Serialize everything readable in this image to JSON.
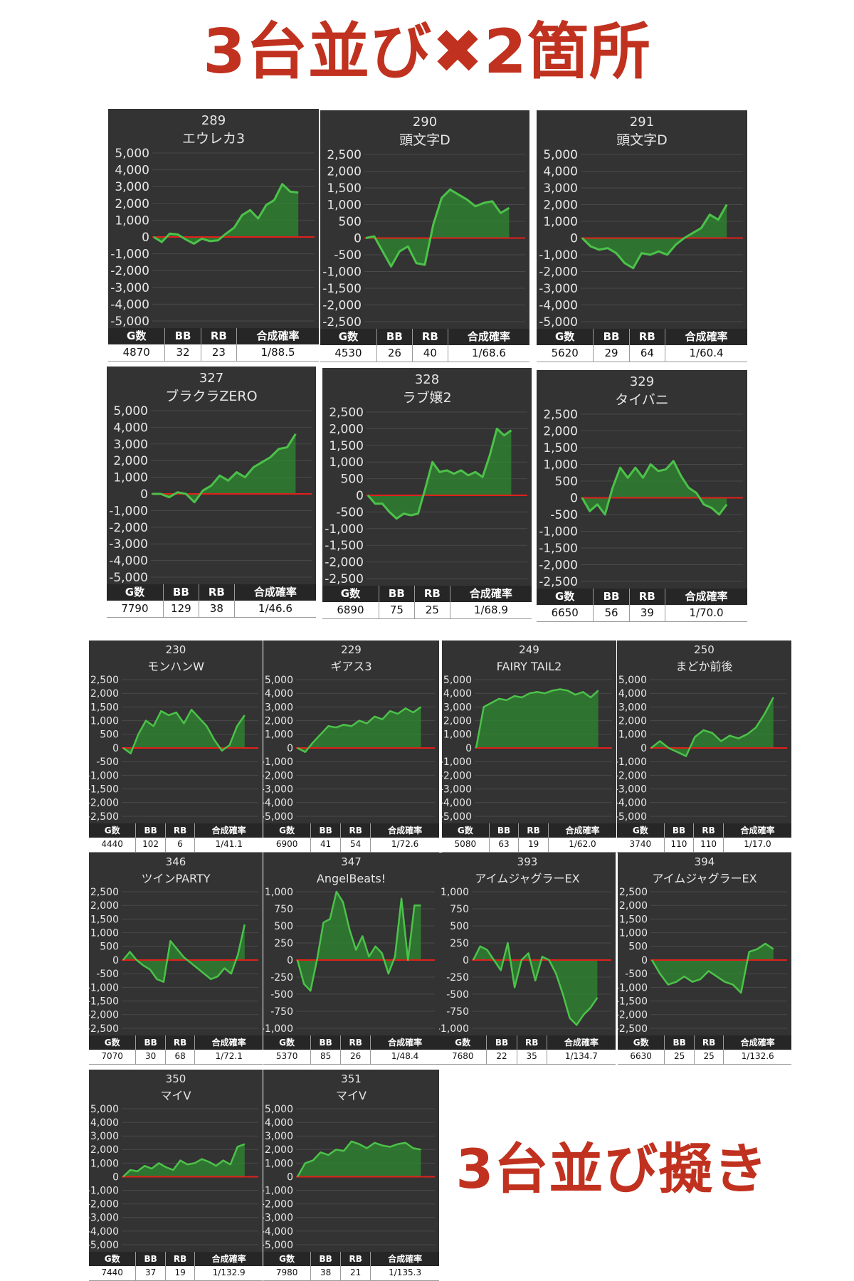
{
  "page": {
    "title": "3台並び✖2箇所",
    "subtitle": "3台並び擬き"
  },
  "chart_data": [
    {
      "type": "area",
      "machine_no": "289",
      "machine_name": "エウレカ3",
      "ylim": [
        -5000,
        5000
      ],
      "yticks": [
        "5,000",
        "4,000",
        "3,000",
        "2,000",
        "1,000",
        "0",
        "-1,000",
        "-2,000",
        "-3,000",
        "-4,000",
        "-5,000"
      ],
      "values": [
        0,
        -300,
        200,
        150,
        -150,
        -400,
        -100,
        -250,
        -200,
        200,
        550,
        1300,
        1600,
        1100,
        1900,
        2200,
        3150,
        2700,
        2650
      ],
      "stats": {
        "g": "4870",
        "bb": "32",
        "rb": "23",
        "rate": "1/88.5"
      }
    },
    {
      "type": "area",
      "machine_no": "290",
      "machine_name": "頭文字D",
      "ylim": [
        -2500,
        2500
      ],
      "yticks": [
        "2,500",
        "2,000",
        "1,500",
        "1,000",
        "500",
        "0",
        "-500",
        "-1,000",
        "-1,500",
        "-2,000",
        "-2,500"
      ],
      "values": [
        0,
        50,
        -400,
        -850,
        -400,
        -250,
        -750,
        -800,
        400,
        1200,
        1450,
        1300,
        1150,
        950,
        1050,
        1100,
        750,
        900
      ],
      "stats": {
        "g": "4530",
        "bb": "26",
        "rb": "40",
        "rate": "1/68.6"
      }
    },
    {
      "type": "area",
      "machine_no": "291",
      "machine_name": "頭文字D",
      "ylim": [
        -5000,
        5000
      ],
      "yticks": [
        "5,000",
        "4,000",
        "3,000",
        "2,000",
        "1,000",
        "0",
        "-1,000",
        "-2,000",
        "-3,000",
        "-4,000",
        "-5,000"
      ],
      "values": [
        0,
        -500,
        -700,
        -600,
        -900,
        -1500,
        -1800,
        -900,
        -1000,
        -800,
        -1000,
        -400,
        0,
        300,
        600,
        1400,
        1100,
        2000
      ],
      "stats": {
        "g": "5620",
        "bb": "29",
        "rb": "64",
        "rate": "1/60.4"
      }
    },
    {
      "type": "area",
      "machine_no": "327",
      "machine_name": "ブラクラZERO",
      "ylim": [
        -5000,
        5000
      ],
      "yticks": [
        "5,000",
        "4,000",
        "3,000",
        "2,000",
        "1,000",
        "0",
        "-1,000",
        "-2,000",
        "-3,000",
        "-4,000",
        "-5,000"
      ],
      "values": [
        0,
        0,
        -200,
        100,
        0,
        -500,
        200,
        500,
        1100,
        800,
        1300,
        1000,
        1600,
        1900,
        2200,
        2700,
        2800,
        3600
      ],
      "stats": {
        "g": "7790",
        "bb": "129",
        "rb": "38",
        "rate": "1/46.6"
      }
    },
    {
      "type": "area",
      "machine_no": "328",
      "machine_name": "ラブ嬢2",
      "ylim": [
        -2500,
        2500
      ],
      "yticks": [
        "2,500",
        "2,000",
        "1,500",
        "1,000",
        "500",
        "0",
        "-500",
        "-1,000",
        "-1,500",
        "-2,000",
        "-2,500"
      ],
      "values": [
        0,
        -250,
        -250,
        -500,
        -700,
        -550,
        -600,
        -550,
        200,
        1000,
        700,
        750,
        650,
        750,
        600,
        700,
        550,
        1200,
        2000,
        1800,
        1950
      ],
      "stats": {
        "g": "6890",
        "bb": "75",
        "rb": "25",
        "rate": "1/68.9"
      }
    },
    {
      "type": "area",
      "machine_no": "329",
      "machine_name": "タイバニ",
      "ylim": [
        -2500,
        2500
      ],
      "yticks": [
        "2,500",
        "2,000",
        "1,500",
        "1,000",
        "500",
        "0",
        "-500",
        "-1,000",
        "-1,500",
        "-2,000",
        "-2,500"
      ],
      "values": [
        0,
        -400,
        -200,
        -500,
        300,
        900,
        600,
        900,
        600,
        1000,
        800,
        850,
        1100,
        650,
        300,
        150,
        -200,
        -300,
        -500,
        -200
      ],
      "stats": {
        "g": "6650",
        "bb": "56",
        "rb": "39",
        "rate": "1/70.0"
      }
    },
    {
      "type": "area",
      "machine_no": "230",
      "machine_name": "モンハンW",
      "ylim": [
        -2500,
        2500
      ],
      "yticks": [
        "2,500",
        "2,000",
        "1,500",
        "1,000",
        "500",
        "0",
        "-500",
        "-1,000",
        "-1,500",
        "-2,000",
        "-2,500"
      ],
      "values": [
        0,
        -200,
        500,
        1000,
        800,
        1350,
        1200,
        1300,
        900,
        1400,
        1100,
        800,
        300,
        -100,
        100,
        800,
        1200
      ],
      "stats": {
        "g": "4440",
        "bb": "102",
        "rb": "6",
        "rate": "1/41.1"
      }
    },
    {
      "type": "area",
      "machine_no": "229",
      "machine_name": "ギアス3",
      "ylim": [
        -5000,
        5000
      ],
      "yticks": [
        "5,000",
        "4,000",
        "3,000",
        "2,000",
        "1,000",
        "0",
        "-1,000",
        "-2,000",
        "-3,000",
        "-4,000",
        "-5,000"
      ],
      "values": [
        0,
        -300,
        400,
        1000,
        1600,
        1500,
        1700,
        1600,
        2000,
        1800,
        2300,
        2100,
        2700,
        2500,
        2900,
        2600,
        3000
      ],
      "stats": {
        "g": "6900",
        "bb": "41",
        "rb": "54",
        "rate": "1/72.6"
      }
    },
    {
      "type": "area",
      "machine_no": "249",
      "machine_name": "FAIRY TAIL2",
      "ylim": [
        -5000,
        5000
      ],
      "yticks": [
        "5,000",
        "4,000",
        "3,000",
        "2,000",
        "1,000",
        "0",
        "-1,000",
        "-2,000",
        "-3,000",
        "-4,000",
        "-5,000"
      ],
      "values": [
        0,
        3000,
        3300,
        3600,
        3500,
        3800,
        3700,
        4000,
        4100,
        4000,
        4200,
        4300,
        4200,
        3900,
        4100,
        3700,
        4200
      ],
      "stats": {
        "g": "5080",
        "bb": "63",
        "rb": "19",
        "rate": "1/62.0"
      }
    },
    {
      "type": "area",
      "machine_no": "250",
      "machine_name": "まどか前後",
      "ylim": [
        -5000,
        5000
      ],
      "yticks": [
        "5,000",
        "4,000",
        "3,000",
        "2,000",
        "1,000",
        "0",
        "-1,000",
        "-2,000",
        "-3,000",
        "-4,000",
        "-5,000"
      ],
      "values": [
        0,
        500,
        0,
        -300,
        -600,
        800,
        1300,
        1100,
        500,
        900,
        700,
        1000,
        1500,
        2500,
        3700
      ],
      "stats": {
        "g": "3740",
        "bb": "110",
        "rb": "110",
        "rate": "1/17.0"
      }
    },
    {
      "type": "area",
      "machine_no": "346",
      "machine_name": "ツインPARTY",
      "ylim": [
        -2500,
        2500
      ],
      "yticks": [
        "2,500",
        "2,000",
        "1,500",
        "1,000",
        "500",
        "0",
        "-500",
        "-1,000",
        "-1,500",
        "-2,000",
        "-2,500"
      ],
      "values": [
        0,
        300,
        0,
        -200,
        -350,
        -700,
        -800,
        700,
        400,
        100,
        -100,
        -300,
        -500,
        -700,
        -600,
        -300,
        -500,
        200,
        1300
      ],
      "stats": {
        "g": "7070",
        "bb": "30",
        "rb": "68",
        "rate": "1/72.1"
      }
    },
    {
      "type": "area",
      "machine_no": "347",
      "machine_name": "AngelBeats!",
      "ylim": [
        -1000,
        1000
      ],
      "yticks": [
        "1,000",
        "750",
        "500",
        "250",
        "0",
        "-250",
        "-500",
        "-750",
        "-1,000"
      ],
      "values": [
        0,
        -350,
        -450,
        0,
        550,
        600,
        1000,
        850,
        450,
        150,
        350,
        50,
        200,
        100,
        -200,
        50,
        900,
        0,
        800,
        800
      ],
      "stats": {
        "g": "5370",
        "bb": "85",
        "rb": "26",
        "rate": "1/48.4"
      }
    },
    {
      "type": "area",
      "machine_no": "393",
      "machine_name": "アイムジャグラーEX",
      "ylim": [
        -1000,
        1000
      ],
      "yticks": [
        "1,000",
        "750",
        "500",
        "250",
        "0",
        "-250",
        "-500",
        "-750",
        "-1,000"
      ],
      "values": [
        0,
        200,
        150,
        0,
        -150,
        250,
        -400,
        0,
        100,
        -300,
        50,
        0,
        -200,
        -500,
        -850,
        -950,
        -800,
        -700,
        -550
      ],
      "stats": {
        "g": "7680",
        "bb": "22",
        "rb": "35",
        "rate": "1/134.7"
      }
    },
    {
      "type": "area",
      "machine_no": "394",
      "machine_name": "アイムジャグラーEX",
      "ylim": [
        -2500,
        2500
      ],
      "yticks": [
        "2,500",
        "2,000",
        "1,500",
        "1,000",
        "500",
        "0",
        "-500",
        "-1,000",
        "-1,500",
        "-2,000",
        "-2,500"
      ],
      "values": [
        0,
        -500,
        -900,
        -800,
        -600,
        -800,
        -700,
        -400,
        -600,
        -800,
        -900,
        -1200,
        300,
        400,
        600,
        400
      ],
      "stats": {
        "g": "6630",
        "bb": "25",
        "rb": "25",
        "rate": "1/132.6"
      }
    },
    {
      "type": "area",
      "machine_no": "350",
      "machine_name": "マイV",
      "ylim": [
        -5000,
        5000
      ],
      "yticks": [
        "5,000",
        "4,000",
        "3,000",
        "2,000",
        "1,000",
        "0",
        "-1,000",
        "-2,000",
        "-3,000",
        "-4,000",
        "-5,000"
      ],
      "values": [
        0,
        500,
        400,
        800,
        600,
        1000,
        700,
        500,
        1200,
        900,
        1000,
        1300,
        1100,
        800,
        1200,
        900,
        2200,
        2400
      ],
      "stats": {
        "g": "7440",
        "bb": "37",
        "rb": "19",
        "rate": "1/132.9"
      }
    },
    {
      "type": "area",
      "machine_no": "351",
      "machine_name": "マイV",
      "ylim": [
        -5000,
        5000
      ],
      "yticks": [
        "5,000",
        "4,000",
        "3,000",
        "2,000",
        "1,000",
        "0",
        "-1,000",
        "-2,000",
        "-3,000",
        "-4,000",
        "-5,000"
      ],
      "values": [
        0,
        1000,
        1200,
        1800,
        1600,
        2000,
        1900,
        2600,
        2400,
        2100,
        2500,
        2300,
        2200,
        2400,
        2500,
        2100,
        2000
      ],
      "stats": {
        "g": "7980",
        "bb": "38",
        "rb": "21",
        "rate": "1/135.3"
      }
    }
  ],
  "table_headers": {
    "g": "G数",
    "bb": "BB",
    "rb": "RB",
    "rate": "合成確率"
  },
  "colors": {
    "panel_bg": "#333333",
    "line": "#4cc24a",
    "fill": "#2f8a30",
    "zero_line": "#e0201a",
    "text": "#e6e6e6"
  }
}
